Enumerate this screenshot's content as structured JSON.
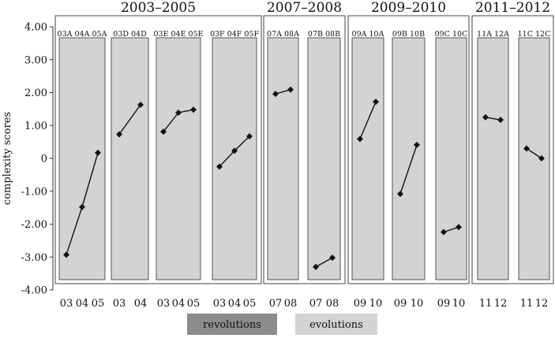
{
  "chart_data": {
    "type": "line",
    "ylabel": "complexity scores",
    "ylim": [
      -4.0,
      4.0
    ],
    "y_ticks": [
      "4.00",
      "3.00",
      "2.00",
      "1.00",
      "0",
      "-1.00",
      "-2.00",
      "-3.00",
      "-4.00"
    ],
    "grid": false,
    "legend": [
      {
        "label": "revolutions",
        "color": "#8c8c8c"
      },
      {
        "label": "evolutions",
        "color": "#d3d3d3"
      }
    ],
    "groups": [
      {
        "title": "2003–2005",
        "panels": [
          {
            "header": "03A 04A 05A",
            "x": [
              "03",
              "04",
              "05"
            ],
            "values": [
              -2.93,
              -1.48,
              0.17
            ],
            "type": "evolution"
          },
          {
            "header": "03D 04D",
            "x": [
              "03",
              "04"
            ],
            "values": [
              0.73,
              1.63
            ],
            "type": "evolution"
          },
          {
            "header": "03E 04E 05E",
            "x": [
              "03",
              "04",
              "05"
            ],
            "values": [
              0.81,
              1.39,
              1.48
            ],
            "type": "evolution"
          },
          {
            "header": "03F 04F 05F",
            "x": [
              "03",
              "04",
              "05"
            ],
            "values": [
              -0.25,
              0.23,
              0.67
            ],
            "type": "evolution"
          }
        ]
      },
      {
        "title": "2007–2008",
        "panels": [
          {
            "header": "07A 08A",
            "x": [
              "07",
              "08"
            ],
            "values": [
              1.96,
              2.09
            ],
            "type": "evolution"
          },
          {
            "header": "07B 08B",
            "x": [
              "07",
              "08"
            ],
            "values": [
              -3.3,
              -3.02
            ],
            "type": "evolution"
          }
        ]
      },
      {
        "title": "2009–2010",
        "panels": [
          {
            "header": "09A 10A",
            "x": [
              "09",
              "10"
            ],
            "values": [
              0.59,
              1.72
            ],
            "type": "evolution"
          },
          {
            "header": "09B 10B",
            "x": [
              "09",
              "10"
            ],
            "values": [
              -1.08,
              0.41
            ],
            "type": "evolution"
          },
          {
            "header": "09C 10C",
            "x": [
              "09",
              "10"
            ],
            "values": [
              -2.24,
              -2.09
            ],
            "type": "evolution"
          }
        ]
      },
      {
        "title": "2011–2012",
        "panels": [
          {
            "header": "11A 12A",
            "x": [
              "11",
              "12"
            ],
            "values": [
              1.25,
              1.17
            ],
            "type": "evolution"
          },
          {
            "header": "11C 12C",
            "x": [
              "11",
              "12"
            ],
            "values": [
              0.3,
              0.0
            ],
            "type": "evolution"
          }
        ]
      }
    ]
  }
}
